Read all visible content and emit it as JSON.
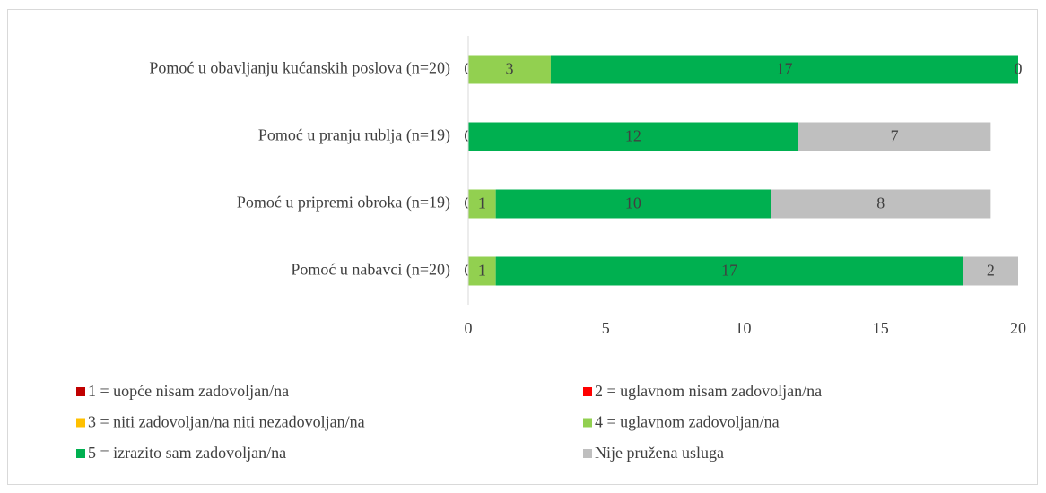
{
  "chart_data": {
    "type": "stacked_barh",
    "categories": [
      "Pomoć u obavljanju kućanskih poslova (n=20)",
      "Pomoć u pranju rublja (n=19)",
      "Pomoć u pripremi obroka (n=19)",
      "Pomoć u nabavci (n=20)"
    ],
    "series": [
      {
        "name": "1 = uopće nisam zadovoljan/na",
        "color": "#C00000",
        "values": [
          0,
          0,
          0,
          0
        ]
      },
      {
        "name": "2 = uglavnom nisam zadovoljan/na",
        "color": "#FF0000",
        "values": [
          0,
          0,
          0,
          0
        ]
      },
      {
        "name": "3 = niti zadovoljan/na niti nezadovoljan/na",
        "color": "#FFC000",
        "values": [
          0,
          0,
          0,
          0
        ]
      },
      {
        "name": "4 = uglavnom zadovoljan/na",
        "color": "#92D050",
        "values": [
          3,
          0,
          1,
          1
        ]
      },
      {
        "name": "5 = izrazito sam zadovoljan/na",
        "color": "#00B050",
        "values": [
          17,
          12,
          10,
          17
        ]
      },
      {
        "name": "Nije pružena usluga",
        "color": "#BFBFBF",
        "values": [
          0,
          7,
          8,
          2
        ]
      }
    ],
    "xlim": [
      0,
      20
    ],
    "xticks": [
      0,
      5,
      10,
      15,
      20
    ],
    "legend": "bottom"
  }
}
